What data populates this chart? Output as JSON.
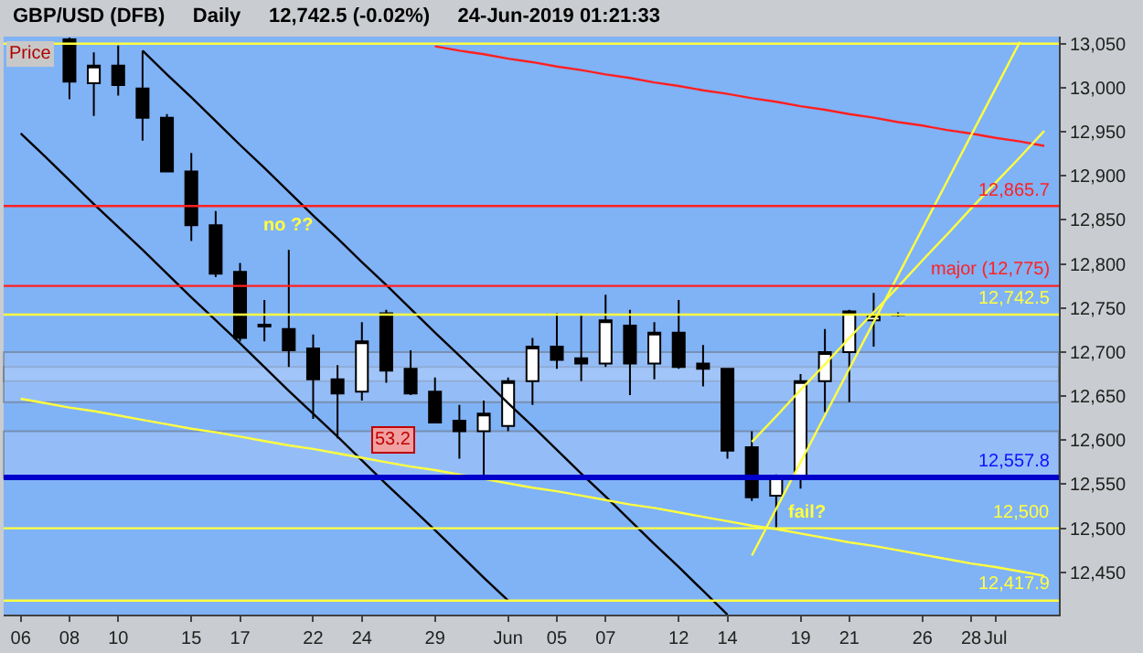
{
  "chart_data": {
    "type": "candlestick",
    "title": "GBP/USD (DFB)     Daily     12,742.5 (-0.02%)     24-Jun-2019 01:21:33",
    "subtitle": "Price",
    "categories": [
      "06",
      null,
      "08",
      null,
      "10",
      null,
      null,
      "15",
      null,
      "17",
      null,
      null,
      "22",
      null,
      "24",
      null,
      null,
      "29",
      null,
      null,
      "Jun",
      null,
      "05",
      null,
      "07",
      null,
      null,
      "12",
      null,
      "14",
      null,
      null,
      "19",
      null,
      "21",
      null,
      null,
      "26",
      null,
      "28",
      "Jul",
      null,
      null
    ],
    "series": [
      {
        "color": "#000000",
        "ohlc": [
          null,
          null,
          [
            13055,
            13057,
            12987,
            13007
          ],
          [
            13005,
            13040,
            12968,
            13025
          ],
          [
            13025,
            13048,
            12991,
            13003
          ],
          [
            12999,
            13042,
            12940,
            12966
          ],
          [
            12966,
            12970,
            12905,
            12905
          ],
          [
            12905,
            12926,
            12826,
            12844
          ],
          [
            12844,
            12860,
            12785,
            12789
          ],
          [
            12791,
            12801,
            12712,
            12716
          ],
          [
            12731,
            12759,
            12712,
            12729
          ],
          [
            12726,
            12816,
            12683,
            12702
          ],
          [
            12704,
            12720,
            12624,
            12669
          ],
          [
            12669,
            12685,
            12602,
            12653
          ],
          [
            12655,
            12734,
            12645,
            12712
          ],
          [
            12744,
            12748,
            12665,
            12679
          ],
          [
            12681,
            12702,
            12651,
            12653
          ],
          [
            12655,
            12671,
            12620,
            12620
          ],
          [
            12622,
            12640,
            12579,
            12610
          ],
          [
            12610,
            12645,
            12557,
            12630
          ],
          [
            12616,
            12671,
            12610,
            12667
          ],
          [
            12667,
            12716,
            12640,
            12706
          ],
          [
            12706,
            12744,
            12681,
            12691
          ],
          [
            12693,
            12742,
            12667,
            12687
          ],
          [
            12687,
            12765,
            12683,
            12736
          ],
          [
            12730,
            12748,
            12651,
            12687
          ],
          [
            12687,
            12734,
            12669,
            12722
          ],
          [
            12722,
            12759,
            12681,
            12683
          ],
          [
            12687,
            12708,
            12661,
            12681
          ],
          [
            12681,
            12681,
            12579,
            12588
          ],
          [
            12592,
            12610,
            12531,
            12535
          ],
          [
            12537,
            12561,
            12498,
            12559
          ],
          [
            12559,
            12675,
            12545,
            12667
          ],
          [
            12667,
            12726,
            12632,
            12700
          ],
          [
            12700,
            12748,
            12643,
            12746
          ],
          [
            12736,
            12767,
            12706,
            12742
          ],
          [
            12742,
            12745,
            12740,
            12742.5
          ],
          null,
          null,
          null,
          null,
          null,
          null
        ]
      },
      {
        "type": "line",
        "color": "#000000",
        "values": [
          12948,
          12922,
          12895,
          12868,
          12842,
          12816,
          12789,
          12762,
          12736,
          12710,
          12683,
          12656,
          12630,
          12604,
          12577,
          12550,
          12524,
          12498,
          12471,
          12444,
          12418,
          null,
          null,
          null,
          null,
          null,
          null,
          null,
          null,
          null,
          null,
          null,
          null,
          null,
          null,
          null,
          null,
          null,
          null,
          null,
          null,
          null,
          null
        ]
      },
      {
        "type": "line",
        "color": "#000000",
        "values": [
          null,
          null,
          null,
          null,
          null,
          13042,
          13015,
          12989,
          12962,
          12935,
          12909,
          12882,
          12855,
          12829,
          12802,
          12776,
          12749,
          12722,
          12696,
          12669,
          12642,
          12616,
          12589,
          12562,
          12536,
          12509,
          12482,
          12456,
          12429,
          12402,
          null,
          null,
          null,
          null,
          null,
          null,
          null,
          null,
          null,
          null,
          null,
          null,
          null
        ]
      },
      {
        "type": "line",
        "color": "#ff2020",
        "values": [
          null,
          null,
          null,
          null,
          null,
          null,
          null,
          null,
          null,
          null,
          null,
          null,
          null,
          null,
          null,
          null,
          null,
          13047,
          13042,
          13038,
          13033,
          13029,
          13024,
          13020,
          13015,
          13011,
          13006,
          13002,
          12997,
          12993,
          12988,
          12984,
          12979,
          12975,
          12970,
          12966,
          12961,
          12957,
          12952,
          12948,
          12943,
          12939,
          12934
        ]
      },
      {
        "type": "line",
        "color": "#ffff40",
        "values": [
          12647,
          12642,
          12637,
          12633,
          12628,
          12623,
          12618,
          12613,
          12609,
          12604,
          12599,
          12594,
          12590,
          12585,
          12580,
          12575,
          12570,
          12566,
          12561,
          12556,
          12551,
          12546,
          12542,
          12537,
          12532,
          12527,
          12523,
          12518,
          12513,
          12508,
          12503,
          12499,
          12494,
          12489,
          12484,
          12480,
          12475,
          12470,
          12465,
          12460,
          12456,
          12451,
          12446
        ]
      },
      {
        "type": "line",
        "color": "#ffff40",
        "values": [
          null,
          null,
          null,
          null,
          null,
          null,
          null,
          null,
          null,
          null,
          null,
          null,
          null,
          null,
          null,
          null,
          null,
          null,
          null,
          null,
          null,
          null,
          null,
          null,
          null,
          null,
          null,
          null,
          null,
          null,
          12469,
          12522,
          12575,
          12628,
          12681,
          12734,
          12787,
          12840,
          12893,
          12946,
          12999,
          13052,
          null
        ]
      },
      {
        "type": "line",
        "color": "#ffff40",
        "values": [
          null,
          null,
          null,
          null,
          null,
          null,
          null,
          null,
          null,
          null,
          null,
          null,
          null,
          null,
          null,
          null,
          null,
          null,
          null,
          null,
          null,
          null,
          null,
          null,
          null,
          null,
          null,
          null,
          null,
          null,
          12598,
          12627,
          12657,
          12686,
          12716,
          12745,
          12774,
          12804,
          12833,
          12863,
          12892,
          12921,
          12951
        ]
      }
    ],
    "ref_lines": [
      {
        "axis": "y",
        "value": 13050,
        "color": "#ffff40"
      },
      {
        "axis": "y",
        "value": 12865.7,
        "label": "12,865.7",
        "color": "#ff2020"
      },
      {
        "axis": "y",
        "value": 12775,
        "label": "major (12,775)",
        "color": "#ff2020"
      },
      {
        "axis": "y",
        "value": 12742.5,
        "label": "12,742.5",
        "color": "#ffff40"
      },
      {
        "axis": "y",
        "value": 12557.8,
        "label": "12,557.8",
        "color": "#0000cc"
      },
      {
        "axis": "y",
        "value": 12500,
        "label": "12,500",
        "color": "#ffff40"
      },
      {
        "axis": "y",
        "value": 12417.9,
        "label": "12,417.9",
        "color": "#ffff40"
      }
    ],
    "bands": [
      {
        "axis": "y",
        "from": 12557,
        "to": 12610,
        "color": "#a9c9fa"
      },
      {
        "axis": "y",
        "from": 12667,
        "to": 12683,
        "color": "#b4d0fa"
      },
      {
        "axis": "y",
        "from": 12643,
        "to": 12700,
        "color": "#a9c9fa"
      }
    ],
    "annotations": [
      "no ??",
      "fail?",
      "53.2"
    ],
    "ylim": [
      12402,
      13058
    ],
    "yticks": [
      {
        "value": 12450,
        "label": "12,450"
      },
      {
        "value": 12500,
        "label": "12,500"
      },
      {
        "value": 12550,
        "label": "12,550"
      },
      {
        "value": 12600,
        "label": "12,600"
      },
      {
        "value": 12650,
        "label": "12,650"
      },
      {
        "value": 12700,
        "label": "12,700"
      },
      {
        "value": 12750,
        "label": "12,750"
      },
      {
        "value": 12800,
        "label": "12,800"
      },
      {
        "value": 12850,
        "label": "12,850"
      },
      {
        "value": 12900,
        "label": "12,900"
      },
      {
        "value": 12950,
        "label": "12,950"
      },
      {
        "value": 13000,
        "label": "13,000"
      },
      {
        "value": 13050,
        "label": "13,050"
      }
    ],
    "grid": false,
    "legend": false,
    "marker": "none",
    "line_style": "solid"
  }
}
